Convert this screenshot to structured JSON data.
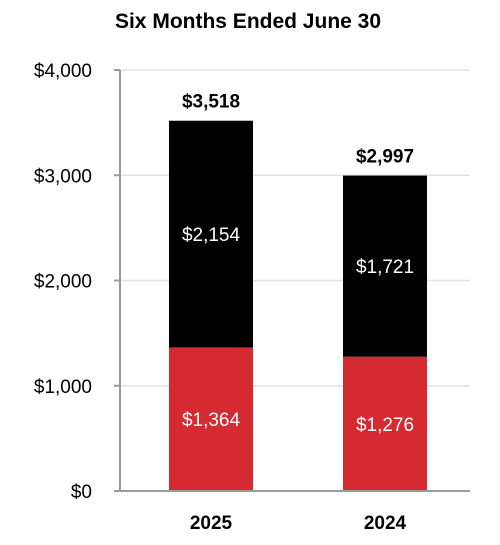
{
  "chart_data": {
    "type": "bar",
    "stacked": true,
    "title": "Six Months Ended June 30",
    "categories": [
      "2025",
      "2024"
    ],
    "series": [
      {
        "values": [
          1364,
          1276
        ],
        "labels": [
          "$1,364",
          "$1,276"
        ],
        "color": "#d62a32"
      },
      {
        "values": [
          2154,
          1721
        ],
        "labels": [
          "$2,154",
          "$1,721"
        ],
        "color": "#000000"
      }
    ],
    "totals": [
      3518,
      2997
    ],
    "total_labels": [
      "$3,518",
      "$2,997"
    ],
    "ylim": [
      0,
      4000
    ],
    "yticks": [
      0,
      1000,
      2000,
      3000,
      4000
    ],
    "ytick_labels": [
      "$0",
      "$1,000",
      "$2,000",
      "$3,000",
      "$4,000"
    ],
    "grid": true,
    "xlabel": "",
    "ylabel": ""
  },
  "colors": {
    "grid": "#e2e2e2",
    "axis": "#9a9a9a",
    "text": "#000000",
    "segment_label": "#ffffff"
  }
}
